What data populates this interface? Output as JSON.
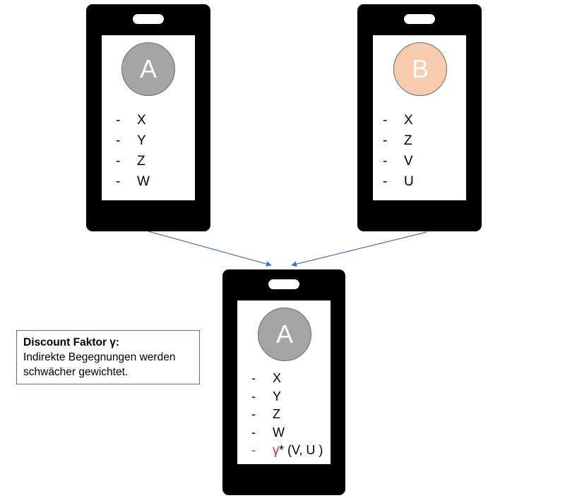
{
  "phones": {
    "top_left": {
      "avatar": {
        "letter": "A",
        "fill": "#a5a5a5"
      },
      "items": [
        {
          "dash": "-",
          "text": "X"
        },
        {
          "dash": "-",
          "text": "Y"
        },
        {
          "dash": "-",
          "text": "Z"
        },
        {
          "dash": "-",
          "text": "W"
        }
      ]
    },
    "top_right": {
      "avatar": {
        "letter": "B",
        "fill": "#f8cbad"
      },
      "items": [
        {
          "dash": "-",
          "text": "X"
        },
        {
          "dash": "-",
          "text": "Z"
        },
        {
          "dash": "-",
          "text": "V"
        },
        {
          "dash": "-",
          "text": "U"
        }
      ]
    },
    "bottom": {
      "avatar": {
        "letter": "A",
        "fill": "#a5a5a5"
      },
      "items": [
        {
          "dash": "-",
          "text": "X"
        },
        {
          "dash": "-",
          "text": "Y"
        },
        {
          "dash": "-",
          "text": "Z"
        },
        {
          "dash": "-",
          "text": "W"
        }
      ],
      "discount_item": {
        "dash": "-",
        "gamma": "γ",
        "rest": "* (V, U )"
      }
    }
  },
  "note": {
    "title": "Discount Faktor γ:",
    "body": "Indirekte Begegnungen werden schwächer gewichtet."
  },
  "colors": {
    "phone_body": "#000000",
    "connector": "#4472c4",
    "note_border": "#4a72b8",
    "highlight": "#e8231f"
  }
}
